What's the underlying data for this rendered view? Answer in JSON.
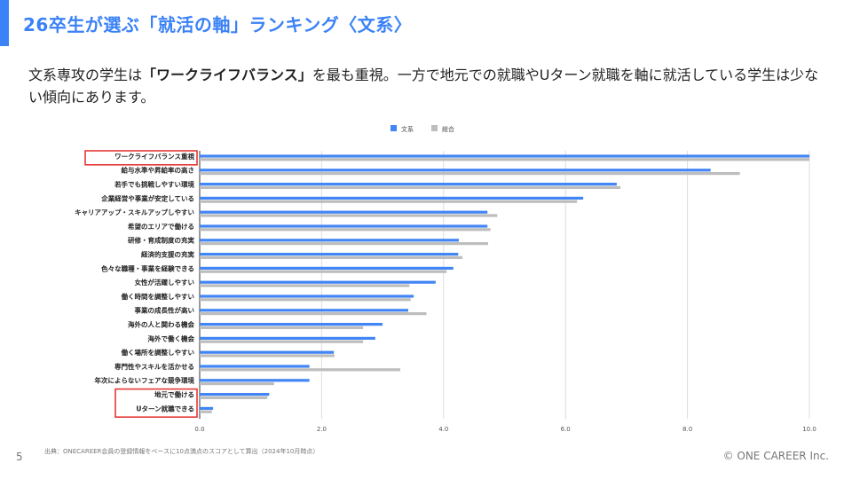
{
  "header": {
    "title": "26卒生が選ぶ「就活の軸」ランキング〈文系〉",
    "accent_color": "#3B82F6"
  },
  "lead": {
    "part1": "文系専攻の学生は",
    "bold": "「ワークライフバランス」",
    "part2": "を最も重視。一方で地元での就職やUターン就職を軸に就活している学生は少ない傾向にあります。"
  },
  "chart_data": {
    "type": "bar",
    "orientation": "horizontal",
    "categories": [
      "ワークライフバランス重視",
      "給与水準や昇給率の高さ",
      "若手でも挑戦しやすい環境",
      "企業経営や事業が安定している",
      "キャリアアップ・スキルアップしやすい",
      "希望のエリアで働ける",
      "研修・育成制度の充実",
      "経済的支援の充実",
      "色々な職種・事業を経験できる",
      "女性が活躍しやすい",
      "働く時間を調整しやすい",
      "事業の成長性が高い",
      "海外の人と関わる機会",
      "海外で働く機会",
      "働く場所を調整しやすい",
      "専門性やスキルを活かせる",
      "年次によらないフェアな競争環境",
      "地元で働ける",
      "Uターン就職できる"
    ],
    "series": [
      {
        "name": "文系",
        "color": "#4285F4",
        "values": [
          10.0,
          8.38,
          6.84,
          6.29,
          4.72,
          4.72,
          4.25,
          4.24,
          4.16,
          3.87,
          3.51,
          3.42,
          3.0,
          2.88,
          2.2,
          1.8,
          1.8,
          1.14,
          0.22
        ]
      },
      {
        "name": "総合",
        "color": "#BDBDBD",
        "values": [
          10.0,
          8.86,
          6.9,
          6.19,
          4.88,
          4.77,
          4.73,
          4.31,
          4.05,
          3.44,
          3.46,
          3.72,
          2.68,
          2.68,
          2.21,
          3.29,
          1.22,
          1.11,
          0.2
        ]
      }
    ],
    "xlim": [
      0,
      10
    ],
    "xticks": [
      "0.0",
      "2.0",
      "4.0",
      "6.0",
      "8.0",
      "10.0"
    ],
    "xtick_values": [
      0,
      2,
      4,
      6,
      8,
      10
    ],
    "grid": true,
    "legend": "top-center",
    "highlighted_categories": [
      0,
      17,
      18
    ],
    "highlight_color": "#E53935"
  },
  "footer": {
    "page_number": "5",
    "source": "出典：ONECAREER会員の登録情報をベースに10点満点のスコアとして算出（2024年10月時点）",
    "copyright": "© ONE CAREER Inc."
  }
}
